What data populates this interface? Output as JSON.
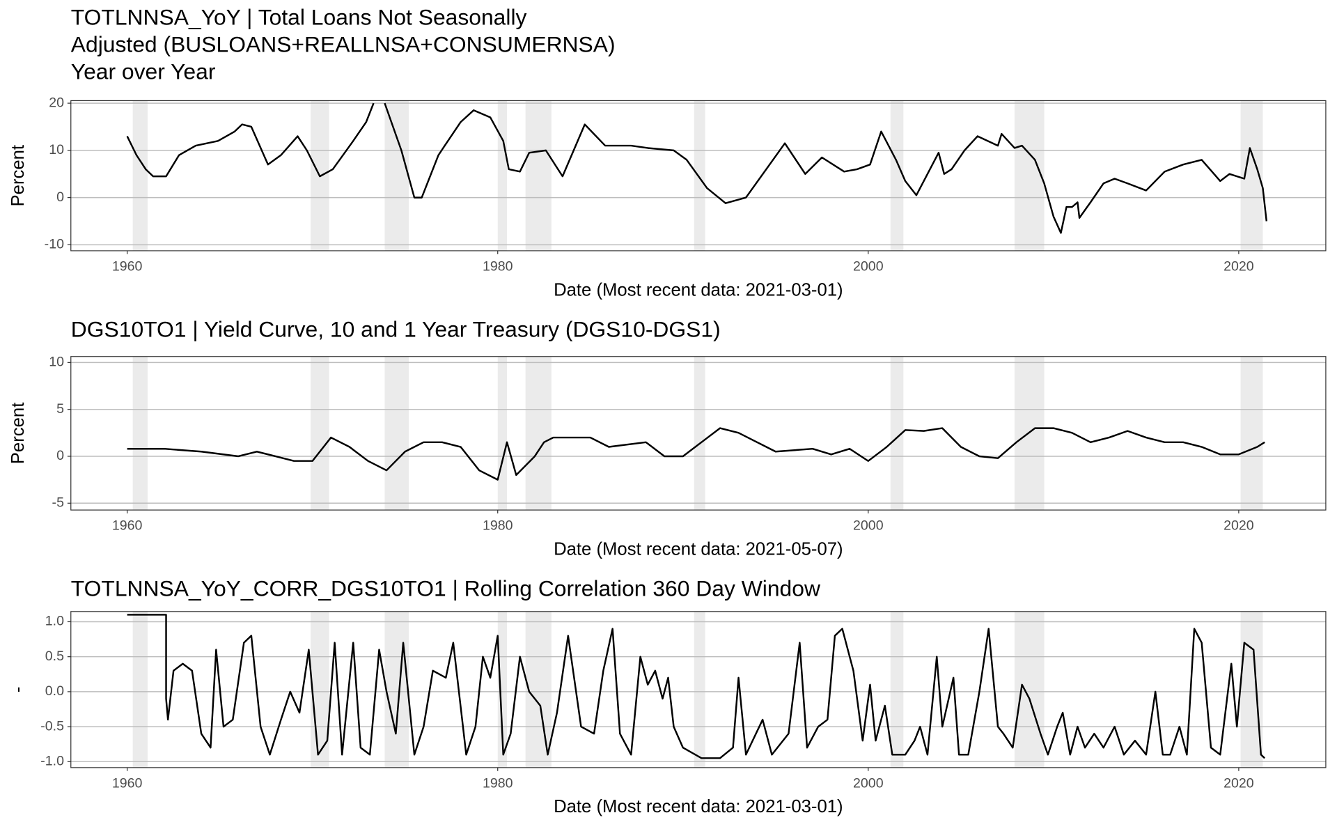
{
  "chart_data": [
    {
      "type": "line",
      "title": [
        "TOTLNNSA_YoY | Total Loans Not Seasonally",
        "Adjusted (BUSLOANS+REALLNSA+CONSUMERNSA)",
        "Year over Year"
      ],
      "xlabel": "Date (Most recent data: 2021-03-01)",
      "ylabel": "Percent",
      "color": "#000000",
      "recession_color": "#ebebeb",
      "grid": true,
      "xlim": [
        1956.96,
        2024.7
      ],
      "ylim": [
        -11.27,
        20.54
      ],
      "xticks": [
        1960,
        1980,
        2000,
        2020
      ],
      "yticks": [
        -10,
        0,
        10,
        20
      ],
      "recessions": [
        [
          1960.3,
          1961.1
        ],
        [
          1969.9,
          1970.9
        ],
        [
          1973.9,
          1975.2
        ],
        [
          1980.0,
          1980.5
        ],
        [
          1981.5,
          1982.9
        ],
        [
          1990.6,
          1991.2
        ],
        [
          2001.2,
          2001.9
        ],
        [
          2007.9,
          2009.5
        ],
        [
          2020.1,
          2021.3
        ]
      ],
      "x": [
        1960,
        1960.5,
        1961,
        1961.4,
        1962.1,
        1962.8,
        1963.7,
        1964.9,
        1965.8,
        1966.2,
        1966.7,
        1967.6,
        1968.3,
        1969.2,
        1969.7,
        1970.4,
        1971.1,
        1972.2,
        1972.9,
        1973.3,
        1973.6,
        1973.9,
        1974.8,
        1975.5,
        1975.9,
        1976.8,
        1978,
        1978.7,
        1979.6,
        1980.3,
        1980.6,
        1981.2,
        1981.7,
        1982.6,
        1983.5,
        1984.7,
        1985.8,
        1987.2,
        1988.1,
        1989.5,
        1990.2,
        1991.3,
        1992.3,
        1993.4,
        1995.5,
        1996.6,
        1997.5,
        1998.7,
        1999.4,
        2000.1,
        2000.7,
        2001.5,
        2002,
        2002.6,
        2003.8,
        2004.1,
        2004.5,
        2005.2,
        2005.9,
        2007,
        2007.2,
        2007.9,
        2008.3,
        2009,
        2009.5,
        2010,
        2010.4,
        2010.7,
        2011,
        2011.3,
        2011.4,
        2012,
        2012.7,
        2013.3,
        2014,
        2015,
        2016,
        2017,
        2018,
        2019,
        2019.5,
        2020.3,
        2020.6,
        2021,
        2021.3,
        2021.5
      ],
      "values": [
        13,
        9,
        6,
        4.5,
        4.5,
        9,
        11,
        12,
        14,
        15.5,
        15,
        7,
        9,
        13,
        10,
        4.5,
        6,
        12,
        16,
        20,
        null,
        20,
        10,
        0,
        0,
        9,
        16,
        18.5,
        17,
        12,
        6,
        5.5,
        9.5,
        10,
        4.5,
        15.5,
        11,
        11,
        10.5,
        10,
        8,
        2,
        -1.2,
        0,
        11.5,
        5,
        8.5,
        5.5,
        6,
        7,
        14,
        8,
        3.5,
        0.5,
        9.5,
        5,
        6,
        10,
        13,
        11,
        13.5,
        10.5,
        11,
        8,
        3,
        -4,
        -7.5,
        -2,
        -2,
        -1,
        -4.3,
        -1,
        3,
        4,
        3,
        1.5,
        5.5,
        7,
        8,
        3.5,
        5,
        4,
        10.5,
        6,
        2,
        -5
      ]
    },
    {
      "type": "line",
      "title": [
        "DGS10TO1 | Yield Curve, 10 and 1 Year Treasury (DGS10-DGS1)"
      ],
      "xlabel": "Date (Most recent data: 2021-05-07)",
      "ylabel": "Percent",
      "color": "#000000",
      "recession_color": "#ebebeb",
      "grid": true,
      "xlim": [
        1956.96,
        2024.7
      ],
      "ylim": [
        -5.73,
        10.64
      ],
      "xticks": [
        1960,
        1980,
        2000,
        2020
      ],
      "yticks": [
        -5,
        0,
        5,
        10
      ],
      "recessions": [
        [
          1960.3,
          1961.1
        ],
        [
          1969.9,
          1970.9
        ],
        [
          1973.9,
          1975.2
        ],
        [
          1980.0,
          1980.5
        ],
        [
          1981.5,
          1982.9
        ],
        [
          1990.6,
          1991.2
        ],
        [
          2001.2,
          2001.9
        ],
        [
          2007.9,
          2009.5
        ],
        [
          2020.1,
          2021.3
        ]
      ],
      "x": [
        1960,
        1962,
        1964,
        1966,
        1967,
        1968,
        1969,
        1970,
        1971,
        1972,
        1973,
        1974,
        1975,
        1976,
        1977,
        1978,
        1979,
        1980,
        1980.5,
        1981,
        1982,
        1982.5,
        1983,
        1985,
        1986,
        1988,
        1989,
        1990,
        1991,
        1992,
        1993,
        1994,
        1995,
        1997,
        1998,
        1999,
        2000,
        2001,
        2002,
        2003,
        2004,
        2005,
        2006,
        2007,
        2008,
        2009,
        2010,
        2011,
        2012,
        2013,
        2014,
        2015,
        2016,
        2017,
        2018,
        2019,
        2020,
        2021,
        2021.4
      ],
      "values": [
        0.8,
        0.8,
        0.5,
        0,
        0.5,
        0,
        -0.5,
        -0.5,
        2,
        1,
        -0.5,
        -1.5,
        0.5,
        1.5,
        1.5,
        1,
        -1.5,
        -2.5,
        1.5,
        -2,
        0,
        1.5,
        2,
        2,
        1,
        1.5,
        0,
        0,
        1.5,
        3,
        2.5,
        1.5,
        0.5,
        0.8,
        0.2,
        0.8,
        -0.5,
        1,
        2.8,
        2.7,
        3,
        1,
        0,
        -0.2,
        1.5,
        3,
        3,
        2.5,
        1.5,
        2,
        2.7,
        2,
        1.5,
        1.5,
        1,
        0.2,
        0.2,
        1,
        1.5
      ]
    },
    {
      "type": "line",
      "title": [
        "TOTLNNSA_YoY_CORR_DGS10TO1 | Rolling Correlation  360  Day Window"
      ],
      "xlabel": "Date (Most recent data: 2021-03-01)",
      "ylabel": "-",
      "color": "#000000",
      "recession_color": "#ebebeb",
      "grid": true,
      "xlim": [
        1956.96,
        2024.7
      ],
      "ylim": [
        -1.085,
        1.146
      ],
      "xticks": [
        1960,
        1980,
        2000,
        2020
      ],
      "yticks": [
        {
          "value": -1,
          "label": "-1.0"
        },
        -0.5,
        {
          "value": 0,
          "label": "0.0"
        },
        0.5,
        {
          "value": 1,
          "label": "1.0"
        }
      ],
      "recessions": [
        [
          1960.3,
          1961.1
        ],
        [
          1969.9,
          1970.9
        ],
        [
          1973.9,
          1975.2
        ],
        [
          1980.0,
          1980.5
        ],
        [
          1981.5,
          1982.9
        ],
        [
          1990.6,
          1991.2
        ],
        [
          2001.2,
          2001.9
        ],
        [
          2007.9,
          2009.5
        ],
        [
          2020.1,
          2021.3
        ]
      ],
      "x": [
        1960,
        1962.1,
        1962.1,
        1962.2,
        1962.5,
        1963,
        1963.5,
        1964,
        1964.5,
        1964.8,
        1965.2,
        1965.7,
        1966.3,
        1966.7,
        1967.2,
        1967.7,
        1968.3,
        1968.8,
        1969.3,
        1969.8,
        1970.3,
        1970.8,
        1971.2,
        1971.6,
        1972.2,
        1972.6,
        1973.1,
        1973.6,
        1974,
        1974.5,
        1974.9,
        1975.5,
        1976,
        1976.5,
        1977.2,
        1977.6,
        1978.3,
        1978.8,
        1979.2,
        1979.6,
        1980,
        1980.3,
        1980.7,
        1981.2,
        1981.7,
        1982.3,
        1982.7,
        1983.2,
        1983.8,
        1984.5,
        1985.2,
        1985.7,
        1986.2,
        1986.6,
        1987.2,
        1987.7,
        1988.1,
        1988.5,
        1988.9,
        1989.2,
        1989.5,
        1990,
        1991,
        1992,
        1992.7,
        1993,
        1993.4,
        1994.3,
        1994.8,
        1995.7,
        1996.3,
        1996.7,
        1997.3,
        1997.8,
        1998.2,
        1998.6,
        1999.2,
        1999.7,
        2000.1,
        2000.4,
        2000.9,
        2001.3,
        2002,
        2002.5,
        2002.8,
        2003.2,
        2003.7,
        2004,
        2004.6,
        2004.9,
        2005.4,
        2006,
        2006.5,
        2007,
        2007.3,
        2007.8,
        2008.3,
        2008.7,
        2009.3,
        2009.7,
        2010.2,
        2010.5,
        2010.9,
        2011.3,
        2011.7,
        2012.2,
        2012.7,
        2013.3,
        2013.8,
        2014.4,
        2015,
        2015.5,
        2015.9,
        2016.3,
        2016.8,
        2017.2,
        2017.6,
        2018,
        2018.5,
        2019,
        2019.6,
        2019.9,
        2020.3,
        2020.8,
        2021.2,
        2021.4
      ],
      "values": [
        1.1,
        1.1,
        -0.1,
        -0.4,
        0.3,
        0.4,
        0.3,
        -0.6,
        -0.8,
        0.6,
        -0.5,
        -0.4,
        0.7,
        0.8,
        -0.5,
        -0.9,
        -0.4,
        0,
        -0.3,
        0.6,
        -0.9,
        -0.7,
        0.7,
        -0.9,
        0.7,
        -0.8,
        -0.9,
        0.6,
        0,
        -0.6,
        0.7,
        -0.9,
        -0.5,
        0.3,
        0.2,
        0.7,
        -0.9,
        -0.5,
        0.5,
        0.2,
        0.8,
        -0.9,
        -0.6,
        0.5,
        0,
        -0.2,
        -0.9,
        -0.3,
        0.8,
        -0.5,
        -0.6,
        0.3,
        0.9,
        -0.6,
        -0.9,
        0.5,
        0.1,
        0.3,
        -0.1,
        0.2,
        -0.5,
        -0.8,
        -0.95,
        -0.95,
        -0.8,
        0.2,
        -0.9,
        -0.4,
        -0.9,
        -0.6,
        0.7,
        -0.8,
        -0.5,
        -0.4,
        0.8,
        0.9,
        0.3,
        -0.7,
        0.1,
        -0.7,
        -0.2,
        -0.9,
        -0.9,
        -0.7,
        -0.5,
        -0.9,
        0.5,
        -0.5,
        0.2,
        -0.9,
        -0.9,
        0,
        0.9,
        -0.5,
        -0.6,
        -0.8,
        0.1,
        -0.1,
        -0.6,
        -0.9,
        -0.5,
        -0.3,
        -0.9,
        -0.5,
        -0.8,
        -0.6,
        -0.8,
        -0.5,
        -0.9,
        -0.7,
        -0.9,
        0,
        -0.9,
        -0.9,
        -0.5,
        -0.9,
        0.9,
        0.7,
        -0.8,
        -0.9,
        0.4,
        -0.5,
        0.7,
        0.6,
        -0.9,
        -0.95
      ]
    }
  ]
}
